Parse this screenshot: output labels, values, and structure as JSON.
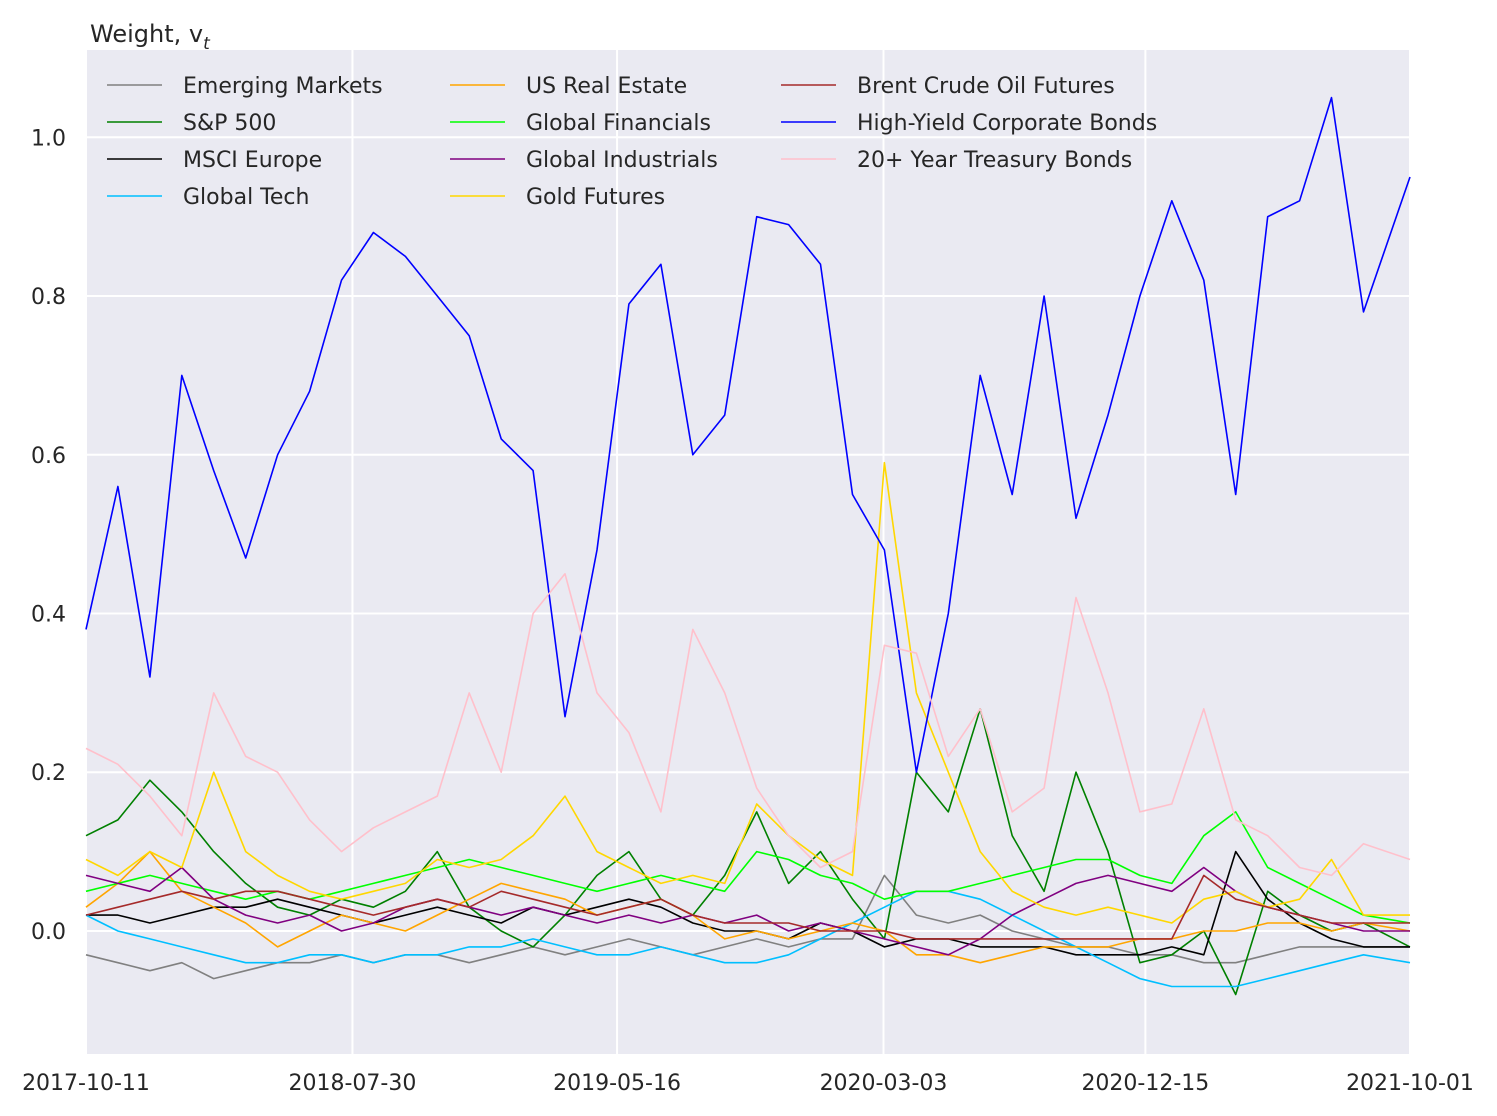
{
  "chart_data": {
    "type": "line",
    "title": "Weight, v",
    "title_subscript": "t",
    "xlabel": "",
    "ylabel": "",
    "x_tick_labels": [
      "2017-10-11",
      "2018-07-30",
      "2019-05-16",
      "2020-03-03",
      "2020-12-15",
      "2021-10-01"
    ],
    "y_ticks": [
      0.0,
      0.2,
      0.4,
      0.6,
      0.8,
      1.0
    ],
    "y_tick_labels": [
      "0.0",
      "0.2",
      "0.4",
      "0.6",
      "0.8",
      "1.0"
    ],
    "xlim": [
      "2017-10-11",
      "2021-10-01"
    ],
    "ylim": [
      -0.155,
      1.11
    ],
    "grid": true,
    "legend_position": "top-left",
    "legend_columns": 3,
    "x": [
      "2017-10-11",
      "2017-11-15",
      "2017-12-20",
      "2018-01-24",
      "2018-02-28",
      "2018-04-04",
      "2018-05-09",
      "2018-06-13",
      "2018-07-18",
      "2018-08-22",
      "2018-09-26",
      "2018-10-31",
      "2018-12-05",
      "2019-01-09",
      "2019-02-13",
      "2019-03-20",
      "2019-04-24",
      "2019-05-29",
      "2019-07-03",
      "2019-08-07",
      "2019-09-11",
      "2019-10-16",
      "2019-11-20",
      "2019-12-25",
      "2020-01-29",
      "2020-03-04",
      "2020-04-08",
      "2020-05-13",
      "2020-06-17",
      "2020-07-22",
      "2020-08-26",
      "2020-09-30",
      "2020-11-04",
      "2020-12-09",
      "2021-01-13",
      "2021-02-17",
      "2021-03-24",
      "2021-04-28",
      "2021-06-02",
      "2021-07-07",
      "2021-08-11",
      "2021-10-01"
    ],
    "series": [
      {
        "name": "Emerging Markets",
        "color": "#808080",
        "values": [
          -0.03,
          -0.04,
          -0.05,
          -0.04,
          -0.06,
          -0.05,
          -0.04,
          -0.04,
          -0.03,
          -0.04,
          -0.03,
          -0.03,
          -0.04,
          -0.03,
          -0.02,
          -0.03,
          -0.02,
          -0.01,
          -0.02,
          -0.03,
          -0.02,
          -0.01,
          -0.02,
          -0.01,
          -0.01,
          0.07,
          0.02,
          0.01,
          0.02,
          0.0,
          -0.01,
          -0.02,
          -0.02,
          -0.03,
          -0.03,
          -0.04,
          -0.04,
          -0.03,
          -0.02,
          -0.02,
          -0.02,
          -0.02
        ]
      },
      {
        "name": "S&P 500",
        "color": "#008000",
        "values": [
          0.12,
          0.14,
          0.19,
          0.15,
          0.1,
          0.06,
          0.03,
          0.02,
          0.04,
          0.03,
          0.05,
          0.1,
          0.03,
          0.0,
          -0.02,
          0.02,
          0.07,
          0.1,
          0.04,
          0.02,
          0.07,
          0.15,
          0.06,
          0.1,
          0.04,
          -0.01,
          0.2,
          0.15,
          0.28,
          0.12,
          0.05,
          0.2,
          0.1,
          -0.04,
          -0.03,
          0.0,
          -0.08,
          0.05,
          0.02,
          0.0,
          0.01,
          -0.02
        ]
      },
      {
        "name": "MSCI Europe",
        "color": "#000000",
        "values": [
          0.02,
          0.02,
          0.01,
          0.02,
          0.03,
          0.03,
          0.04,
          0.03,
          0.02,
          0.01,
          0.02,
          0.03,
          0.02,
          0.01,
          0.03,
          0.02,
          0.03,
          0.04,
          0.03,
          0.01,
          0.0,
          0.0,
          -0.01,
          0.01,
          0.0,
          -0.02,
          -0.01,
          -0.01,
          -0.02,
          -0.02,
          -0.02,
          -0.03,
          -0.03,
          -0.03,
          -0.02,
          -0.03,
          0.1,
          0.04,
          0.01,
          -0.01,
          -0.02,
          -0.02
        ]
      },
      {
        "name": "Global Tech",
        "color": "#00BFFF",
        "values": [
          0.02,
          0.0,
          -0.01,
          -0.02,
          -0.03,
          -0.04,
          -0.04,
          -0.03,
          -0.03,
          -0.04,
          -0.03,
          -0.03,
          -0.02,
          -0.02,
          -0.01,
          -0.02,
          -0.03,
          -0.03,
          -0.02,
          -0.03,
          -0.04,
          -0.04,
          -0.03,
          -0.01,
          0.01,
          0.03,
          0.05,
          0.05,
          0.04,
          0.02,
          0.0,
          -0.02,
          -0.04,
          -0.06,
          -0.07,
          -0.07,
          -0.07,
          -0.06,
          -0.05,
          -0.04,
          -0.03,
          -0.04
        ]
      },
      {
        "name": "US Real Estate",
        "color": "#FFA500",
        "values": [
          0.03,
          0.06,
          0.1,
          0.05,
          0.03,
          0.01,
          -0.02,
          0.0,
          0.02,
          0.01,
          0.0,
          0.02,
          0.04,
          0.06,
          0.05,
          0.04,
          0.02,
          0.03,
          0.04,
          0.02,
          -0.01,
          0.0,
          -0.01,
          0.0,
          0.01,
          0.0,
          -0.03,
          -0.03,
          -0.04,
          -0.03,
          -0.02,
          -0.02,
          -0.02,
          -0.01,
          -0.01,
          0.0,
          0.0,
          0.01,
          0.01,
          0.0,
          0.01,
          0.0
        ]
      },
      {
        "name": "Global Financials",
        "color": "#00FF00",
        "values": [
          0.05,
          0.06,
          0.07,
          0.06,
          0.05,
          0.04,
          0.05,
          0.04,
          0.05,
          0.06,
          0.07,
          0.08,
          0.09,
          0.08,
          0.07,
          0.06,
          0.05,
          0.06,
          0.07,
          0.06,
          0.05,
          0.1,
          0.09,
          0.07,
          0.06,
          0.04,
          0.05,
          0.05,
          0.06,
          0.07,
          0.08,
          0.09,
          0.09,
          0.07,
          0.06,
          0.12,
          0.15,
          0.08,
          0.06,
          0.04,
          0.02,
          0.01
        ]
      },
      {
        "name": "Global Industrials",
        "color": "#800080",
        "values": [
          0.07,
          0.06,
          0.05,
          0.08,
          0.04,
          0.02,
          0.01,
          0.02,
          0.0,
          0.01,
          0.03,
          0.04,
          0.03,
          0.02,
          0.03,
          0.02,
          0.01,
          0.02,
          0.01,
          0.02,
          0.01,
          0.02,
          0.0,
          0.01,
          0.0,
          -0.01,
          -0.02,
          -0.03,
          -0.01,
          0.02,
          0.04,
          0.06,
          0.07,
          0.06,
          0.05,
          0.08,
          0.05,
          0.03,
          0.02,
          0.01,
          0.0,
          0.0
        ]
      },
      {
        "name": "Gold Futures",
        "color": "#FFD700",
        "values": [
          0.09,
          0.07,
          0.1,
          0.08,
          0.2,
          0.1,
          0.07,
          0.05,
          0.04,
          0.05,
          0.06,
          0.09,
          0.08,
          0.09,
          0.12,
          0.17,
          0.1,
          0.08,
          0.06,
          0.07,
          0.06,
          0.16,
          0.12,
          0.09,
          0.07,
          0.59,
          0.3,
          0.2,
          0.1,
          0.05,
          0.03,
          0.02,
          0.03,
          0.02,
          0.01,
          0.04,
          0.05,
          0.03,
          0.04,
          0.09,
          0.02,
          0.02
        ]
      },
      {
        "name": "Brent Crude Oil Futures",
        "color": "#A52A2A",
        "values": [
          0.02,
          0.03,
          0.04,
          0.05,
          0.04,
          0.05,
          0.05,
          0.04,
          0.03,
          0.02,
          0.03,
          0.04,
          0.03,
          0.05,
          0.04,
          0.03,
          0.02,
          0.03,
          0.04,
          0.02,
          0.01,
          0.01,
          0.01,
          0.0,
          0.0,
          0.0,
          -0.01,
          -0.01,
          -0.01,
          -0.01,
          -0.01,
          -0.01,
          -0.01,
          -0.01,
          -0.01,
          0.07,
          0.04,
          0.03,
          0.02,
          0.01,
          0.01,
          0.01
        ]
      },
      {
        "name": "High-Yield Corporate Bonds",
        "color": "#0000FF",
        "values": [
          0.38,
          0.56,
          0.32,
          0.7,
          0.58,
          0.47,
          0.6,
          0.68,
          0.82,
          0.88,
          0.85,
          0.8,
          0.75,
          0.62,
          0.58,
          0.27,
          0.48,
          0.79,
          0.84,
          0.6,
          0.65,
          0.9,
          0.89,
          0.84,
          0.55,
          0.48,
          0.2,
          0.4,
          0.7,
          0.55,
          0.8,
          0.52,
          0.65,
          0.8,
          0.92,
          0.82,
          0.55,
          0.9,
          0.92,
          1.05,
          0.78,
          0.95
        ]
      },
      {
        "name": "20+ Year Treasury Bonds",
        "color": "#FFC0CB",
        "values": [
          0.23,
          0.21,
          0.17,
          0.12,
          0.3,
          0.22,
          0.2,
          0.14,
          0.1,
          0.13,
          0.15,
          0.17,
          0.3,
          0.2,
          0.4,
          0.45,
          0.3,
          0.25,
          0.15,
          0.38,
          0.3,
          0.18,
          0.12,
          0.08,
          0.1,
          0.36,
          0.35,
          0.22,
          0.28,
          0.15,
          0.18,
          0.42,
          0.3,
          0.15,
          0.16,
          0.28,
          0.14,
          0.12,
          0.08,
          0.07,
          0.11,
          0.09
        ]
      }
    ]
  }
}
